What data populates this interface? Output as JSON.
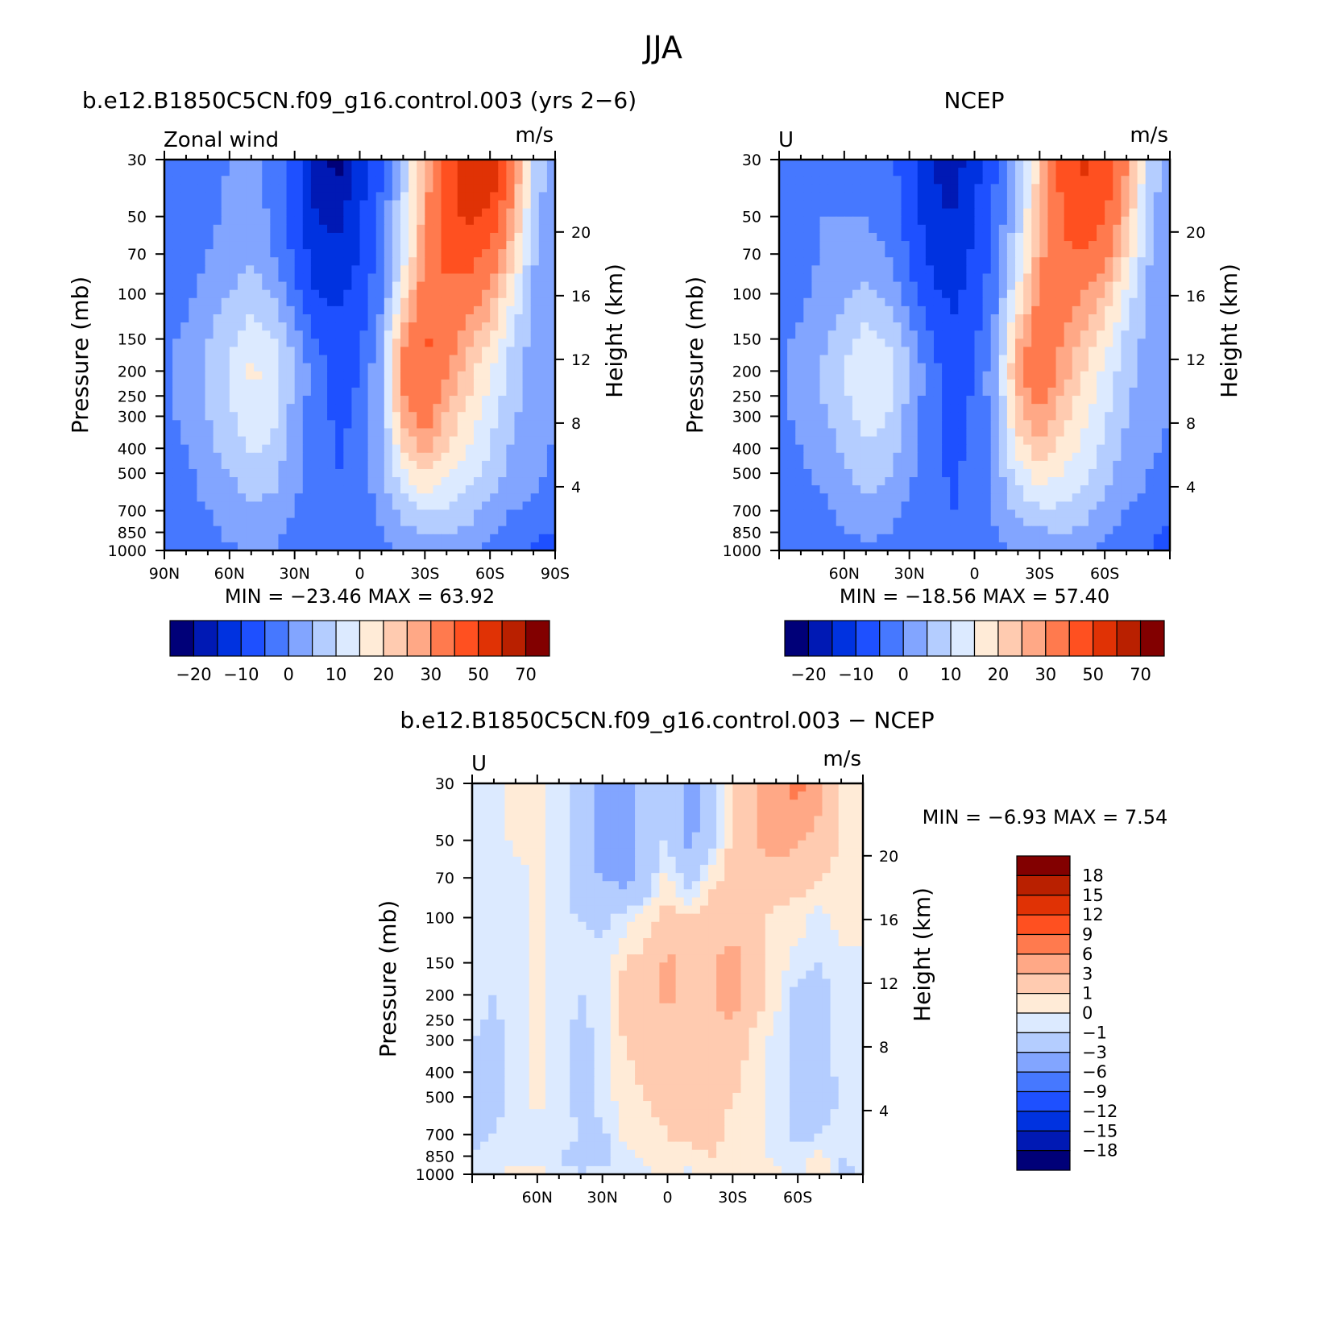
{
  "figure": {
    "title": "JJA"
  },
  "colors": {
    "main_scale": [
      "#000078",
      "#0019b4",
      "#0032e0",
      "#1e50ff",
      "#4678ff",
      "#82a5ff",
      "#b4cdff",
      "#dceaff",
      "#ffebd7",
      "#ffcbb0",
      "#ffa886",
      "#ff7a4e",
      "#ff5020",
      "#e03205",
      "#b92000",
      "#820000"
    ],
    "diff_scale": [
      "#000078",
      "#0019b4",
      "#0032e0",
      "#1e50ff",
      "#4678ff",
      "#82a5ff",
      "#b4cdff",
      "#dceaff",
      "#ffebd7",
      "#ffcbb0",
      "#ffa886",
      "#ff7a4e",
      "#ff5020",
      "#e03205",
      "#b92000",
      "#820000"
    ]
  },
  "chart_data": [
    {
      "type": "heatmap",
      "panel": "model",
      "title": "b.e12.B1850C5CN.f09_g16.control.003 (yrs 2−6)",
      "left_label": "Zonal wind",
      "right_label": "m/s",
      "ylabel": "Pressure (mb)",
      "ylabel2": "Height (km)",
      "x": [
        "90N",
        "60N",
        "30N",
        "0",
        "30S",
        "60S",
        "90S"
      ],
      "x_values": [
        90,
        60,
        30,
        0,
        -30,
        -60,
        -90
      ],
      "y_ticks": [
        "30",
        "50",
        "70",
        "100",
        "150",
        "200",
        "250",
        "300",
        "400",
        "500",
        "700",
        "850",
        "1000"
      ],
      "y_values": [
        30,
        50,
        70,
        100,
        150,
        200,
        250,
        300,
        400,
        500,
        700,
        850,
        1000
      ],
      "y2_ticks": [
        "20",
        "16",
        "12",
        "8",
        "4"
      ],
      "y2_values": [
        20,
        16,
        12,
        8,
        4
      ],
      "ylim": [
        1000,
        30
      ],
      "stats": "MIN = −23.46   MAX =   63.92",
      "min": -23.46,
      "max": 63.92,
      "colorbar_labels": [
        "−20",
        "−10",
        "0",
        "10",
        "20",
        "30",
        "50",
        "70"
      ],
      "levels": [
        -25,
        -20,
        -15,
        -10,
        -5,
        0,
        5,
        10,
        15,
        20,
        25,
        30,
        40,
        50,
        60,
        70
      ],
      "lat_samples": [
        90,
        80,
        70,
        60,
        50,
        40,
        30,
        20,
        10,
        0,
        -10,
        -20,
        -30,
        -40,
        -50,
        -60,
        -70,
        -80,
        -90
      ],
      "p_samples": [
        30,
        50,
        70,
        100,
        150,
        200,
        300,
        500,
        700,
        850,
        1000
      ],
      "values": [
        [
          -2,
          -2,
          -1,
          0,
          2,
          -2,
          -8,
          -18,
          -22,
          -12,
          -5,
          8,
          25,
          45,
          58,
          60,
          35,
          10,
          0
        ],
        [
          -2,
          -2,
          -1,
          1,
          3,
          -1,
          -7,
          -15,
          -16,
          -11,
          -4,
          10,
          28,
          45,
          52,
          48,
          28,
          8,
          0
        ],
        [
          -3,
          -2,
          0,
          2,
          4,
          0,
          -6,
          -13,
          -14,
          -10,
          -3,
          12,
          30,
          42,
          44,
          38,
          22,
          6,
          0
        ],
        [
          -2,
          -1,
          2,
          5,
          8,
          5,
          -3,
          -10,
          -11,
          -8,
          -1,
          18,
          35,
          38,
          34,
          28,
          15,
          4,
          0
        ],
        [
          -1,
          1,
          5,
          9,
          13,
          11,
          3,
          -5,
          -8,
          -6,
          3,
          28,
          42,
          34,
          26,
          20,
          10,
          3,
          0
        ],
        [
          -1,
          2,
          6,
          11,
          16,
          14,
          5,
          -3,
          -7,
          -5,
          5,
          32,
          40,
          30,
          22,
          16,
          8,
          2,
          0
        ],
        [
          -1,
          1,
          5,
          9,
          13,
          11,
          3,
          -3,
          -6,
          -4,
          4,
          26,
          34,
          24,
          18,
          12,
          6,
          2,
          0
        ],
        [
          -2,
          -1,
          2,
          5,
          8,
          7,
          1,
          -3,
          -5,
          -3,
          3,
          14,
          20,
          16,
          12,
          8,
          3,
          1,
          -1
        ],
        [
          -2,
          -2,
          0,
          2,
          4,
          3,
          0,
          -2,
          -4,
          -2,
          1,
          7,
          10,
          9,
          7,
          3,
          0,
          -1,
          -2
        ],
        [
          -3,
          -2,
          -1,
          1,
          2,
          1,
          -1,
          -2,
          -3,
          -2,
          0,
          3,
          5,
          5,
          4,
          1,
          -2,
          -4,
          -5
        ],
        [
          -4,
          -3,
          -2,
          -1,
          0,
          0,
          -2,
          -3,
          -4,
          -3,
          -1,
          1,
          2,
          2,
          1,
          -1,
          -4,
          -6,
          -7
        ]
      ]
    },
    {
      "type": "heatmap",
      "panel": "obs",
      "title": "NCEP",
      "left_label": "U",
      "right_label": "m/s",
      "ylabel": "Pressure (mb)",
      "ylabel2": "Height (km)",
      "x": [
        "60N",
        "30N",
        "0",
        "30S",
        "60S"
      ],
      "x_values": [
        60,
        30,
        0,
        -30,
        -60
      ],
      "y_ticks": [
        "30",
        "50",
        "70",
        "100",
        "150",
        "200",
        "250",
        "300",
        "400",
        "500",
        "700",
        "850",
        "1000"
      ],
      "y_values": [
        30,
        50,
        70,
        100,
        150,
        200,
        250,
        300,
        400,
        500,
        700,
        850,
        1000
      ],
      "y2_ticks": [
        "20",
        "16",
        "12",
        "8",
        "4"
      ],
      "y2_values": [
        20,
        16,
        12,
        8,
        4
      ],
      "ylim": [
        1000,
        30
      ],
      "stats": "MIN = −18.56   MAX =   57.40",
      "min": -18.56,
      "max": 57.4,
      "colorbar_labels": [
        "−20",
        "−10",
        "0",
        "10",
        "20",
        "30",
        "50",
        "70"
      ],
      "levels": [
        -25,
        -20,
        -15,
        -10,
        -5,
        0,
        5,
        10,
        15,
        20,
        25,
        30,
        40,
        50,
        60,
        70
      ],
      "lat_samples": [
        90,
        80,
        70,
        60,
        50,
        40,
        30,
        20,
        10,
        0,
        -10,
        -20,
        -30,
        -40,
        -50,
        -60,
        -70,
        -80,
        -90
      ],
      "p_samples": [
        30,
        50,
        70,
        100,
        150,
        200,
        300,
        500,
        700,
        850,
        1000
      ],
      "values": [
        [
          -1,
          -1,
          -1,
          -1,
          -1,
          -3,
          -8,
          -15,
          -18,
          -12,
          -5,
          5,
          22,
          42,
          52,
          48,
          30,
          10,
          0
        ],
        [
          -1,
          -1,
          0,
          0,
          0,
          -2,
          -7,
          -13,
          -15,
          -10,
          -4,
          8,
          26,
          40,
          46,
          40,
          24,
          8,
          0
        ],
        [
          -2,
          -1,
          0,
          1,
          2,
          0,
          -5,
          -11,
          -13,
          -9,
          -3,
          10,
          28,
          38,
          40,
          34,
          20,
          6,
          0
        ],
        [
          -2,
          -1,
          2,
          4,
          7,
          4,
          -3,
          -9,
          -11,
          -8,
          -1,
          16,
          32,
          34,
          30,
          24,
          13,
          4,
          0
        ],
        [
          -1,
          1,
          4,
          8,
          12,
          10,
          3,
          -5,
          -9,
          -6,
          2,
          24,
          36,
          30,
          24,
          17,
          9,
          3,
          0
        ],
        [
          -1,
          2,
          6,
          10,
          15,
          13,
          5,
          -3,
          -8,
          -5,
          4,
          28,
          36,
          28,
          20,
          14,
          7,
          2,
          0
        ],
        [
          -1,
          1,
          4,
          8,
          12,
          10,
          3,
          -3,
          -7,
          -4,
          3,
          22,
          30,
          22,
          16,
          11,
          5,
          1,
          0
        ],
        [
          -2,
          -1,
          1,
          4,
          7,
          6,
          1,
          -3,
          -6,
          -3,
          2,
          12,
          18,
          15,
          11,
          7,
          2,
          0,
          -1
        ],
        [
          -3,
          -2,
          -1,
          1,
          3,
          2,
          -1,
          -3,
          -5,
          -3,
          1,
          6,
          9,
          9,
          7,
          3,
          0,
          -1,
          -3
        ],
        [
          -3,
          -3,
          -2,
          0,
          1,
          0,
          -2,
          -3,
          -4,
          -2,
          0,
          2,
          4,
          5,
          4,
          1,
          -2,
          -4,
          -6
        ],
        [
          -4,
          -4,
          -3,
          -2,
          -1,
          -1,
          -2,
          -3,
          -4,
          -3,
          -1,
          1,
          2,
          2,
          1,
          -1,
          -3,
          -5,
          -7
        ]
      ]
    },
    {
      "type": "heatmap",
      "panel": "diff",
      "title": "b.e12.B1850C5CN.f09_g16.control.003 − NCEP",
      "left_label": "U",
      "right_label": "m/s",
      "ylabel": "Pressure (mb)",
      "ylabel2": "Height (km)",
      "x": [
        "60N",
        "30N",
        "0",
        "30S",
        "60S"
      ],
      "x_values": [
        60,
        30,
        0,
        -30,
        -60
      ],
      "y_ticks": [
        "30",
        "50",
        "70",
        "100",
        "150",
        "200",
        "250",
        "300",
        "400",
        "500",
        "700",
        "850",
        "1000"
      ],
      "y_values": [
        30,
        50,
        70,
        100,
        150,
        200,
        250,
        300,
        400,
        500,
        700,
        850,
        1000
      ],
      "y2_ticks": [
        "20",
        "16",
        "12",
        "8",
        "4"
      ],
      "y2_values": [
        20,
        16,
        12,
        8,
        4
      ],
      "ylim": [
        1000,
        30
      ],
      "stats": "MIN =   −6.93   MAX =    7.54",
      "min": -6.93,
      "max": 7.54,
      "colorbar_labels": [
        "18",
        "15",
        "12",
        "9",
        "6",
        "3",
        "1",
        "0",
        "−1",
        "−3",
        "−6",
        "−9",
        "−12",
        "−15",
        "−18"
      ],
      "levels": [
        -21,
        -18,
        -15,
        -12,
        -9,
        -6,
        -3,
        -1,
        0,
        1,
        3,
        6,
        9,
        12,
        15,
        18
      ],
      "lat_samples": [
        90,
        80,
        70,
        60,
        50,
        40,
        30,
        20,
        10,
        0,
        -10,
        -20,
        -30,
        -40,
        -50,
        -60,
        -70,
        -80,
        -90
      ],
      "p_samples": [
        30,
        50,
        70,
        100,
        150,
        200,
        300,
        500,
        700,
        850,
        1000
      ],
      "values": [
        [
          -0.5,
          -0.5,
          0.5,
          0.2,
          -0.5,
          -1.5,
          -4,
          -4,
          -1,
          -1.5,
          -4,
          -2,
          1,
          3,
          5,
          7,
          4,
          1,
          0
        ],
        [
          -0.5,
          -0.5,
          0.3,
          0.2,
          -0.5,
          -2,
          -4,
          -4,
          -1.5,
          -1,
          -3.5,
          -1.5,
          1.5,
          3,
          4,
          3,
          2,
          1,
          0
        ],
        [
          -0.5,
          -0.5,
          -0.5,
          0.2,
          -0.5,
          -2,
          -3,
          -3.5,
          -2,
          0.5,
          -2,
          0.5,
          1.5,
          2,
          2,
          1.5,
          1,
          0.5,
          0
        ],
        [
          -0.5,
          -0.5,
          -0.5,
          0.5,
          -0.5,
          -1,
          -1.5,
          -0.5,
          0.5,
          1.5,
          1.5,
          2,
          2,
          1.5,
          0.5,
          0.5,
          -0.5,
          0.5,
          0
        ],
        [
          -0.5,
          -0.5,
          -0.5,
          0.5,
          -0.5,
          -0.5,
          -0.5,
          1,
          1.5,
          3.5,
          2,
          2.5,
          4,
          2,
          0.5,
          -0.5,
          -1,
          -0.5,
          0
        ],
        [
          -0.5,
          -1,
          -0.5,
          0.5,
          -0.5,
          -1,
          -0.5,
          1.5,
          2,
          3.5,
          2,
          3,
          4,
          2,
          0.5,
          -1.5,
          -1.5,
          -0.5,
          0
        ],
        [
          -1,
          -1.5,
          -0.5,
          0.5,
          -0.5,
          -1.5,
          -0.5,
          1,
          1.5,
          2,
          2,
          2,
          2,
          0.5,
          -0.5,
          -1.5,
          -1.5,
          -0.5,
          0
        ],
        [
          -1.5,
          -1.5,
          -0.5,
          0.3,
          -0.5,
          -1.5,
          -0.5,
          0.5,
          1,
          1.5,
          2,
          2,
          1,
          0.5,
          -0.5,
          -1.5,
          -1.5,
          -1,
          0
        ],
        [
          -1.5,
          -1,
          -0.5,
          -0.5,
          -0.5,
          -1,
          -1.5,
          0.5,
          0.5,
          1,
          1.5,
          1.5,
          0.5,
          0.5,
          -0.5,
          -1.5,
          -1,
          -0.5,
          0
        ],
        [
          -1,
          -0.5,
          -0.5,
          -0.5,
          -1,
          -1.5,
          -1.5,
          -0.5,
          0.5,
          0.5,
          0.5,
          1,
          0.5,
          0.5,
          -0.5,
          -0.5,
          0.5,
          -1,
          -0.5
        ],
        [
          -0.5,
          -0.5,
          0.5,
          0.5,
          -0.5,
          -1,
          -0.5,
          -0.5,
          -0.5,
          0.5,
          -0.5,
          0.5,
          0.5,
          0.5,
          0.5,
          -0.5,
          1,
          -1.5,
          -1
        ]
      ]
    }
  ]
}
